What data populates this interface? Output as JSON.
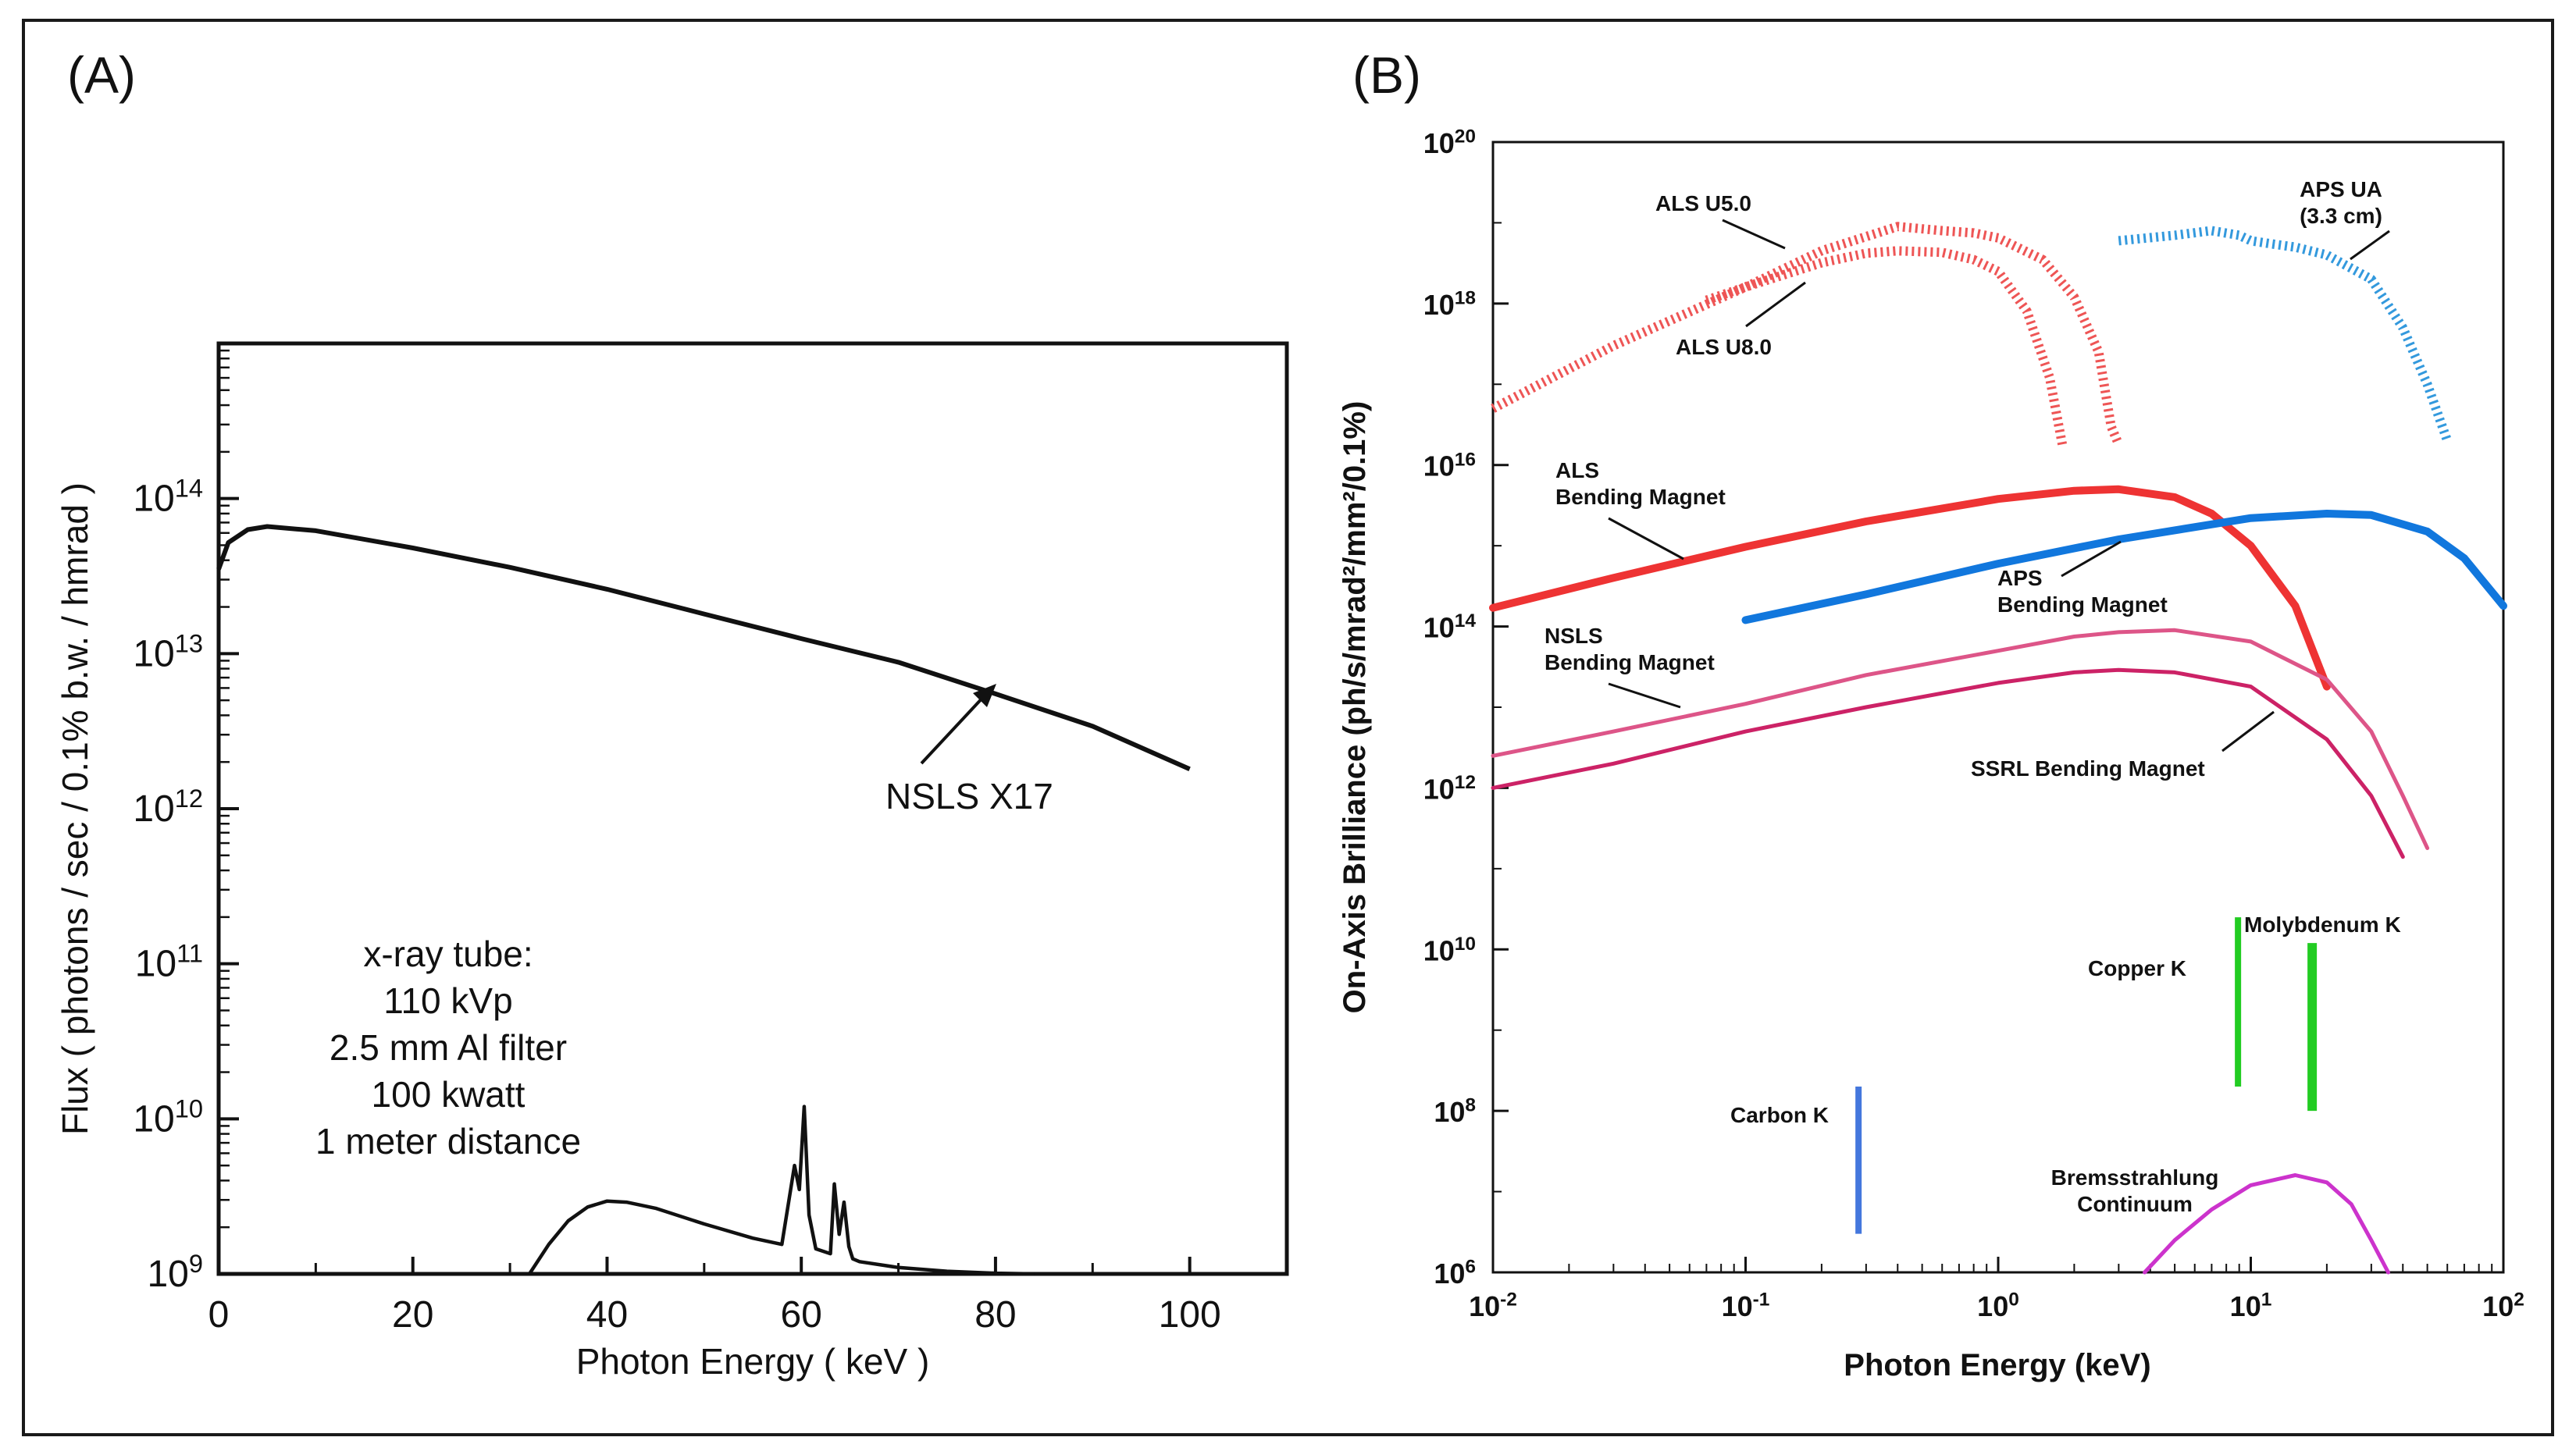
{
  "panels": {
    "a_label": "(A)",
    "b_label": "(B)"
  },
  "chart_data": [
    {
      "type": "line",
      "panel": "(A)",
      "title": "",
      "xlabel": "Photon Energy ( keV )",
      "ylabel": "Flux ( photons / sec / 0.1% b.w. / hmrad )",
      "x_ticks": [
        "0",
        "20",
        "40",
        "60",
        "80",
        "100"
      ],
      "y_ticks": [
        {
          "base": "10",
          "exp": "9"
        },
        {
          "base": "10",
          "exp": "10"
        },
        {
          "base": "10",
          "exp": "11"
        },
        {
          "base": "10",
          "exp": "12"
        },
        {
          "base": "10",
          "exp": "13"
        },
        {
          "base": "10",
          "exp": "14"
        }
      ],
      "xlim": [
        0,
        110
      ],
      "ylim": [
        1000000000.0,
        1000000000000000.0
      ],
      "y_scale": "log",
      "grid": false,
      "series": [
        {
          "name": "NSLS X17",
          "x": [
            0,
            1,
            3,
            5,
            10,
            20,
            30,
            40,
            50,
            60,
            70,
            80,
            90,
            100
          ],
          "y": [
            35000000000000.0,
            52000000000000.0,
            63000000000000.0,
            66000000000000.0,
            62000000000000.0,
            48000000000000.0,
            36000000000000.0,
            26000000000000.0,
            18000000000000.0,
            12500000000000.0,
            8800000000000.0,
            5500000000000.0,
            3400000000000.0,
            1800000000000.0
          ]
        },
        {
          "name": "x-ray tube",
          "x": [
            32,
            34,
            36,
            38,
            40,
            42,
            45,
            50,
            55,
            58,
            59.3,
            59.8,
            60.3,
            60.8,
            61.5,
            63,
            63.4,
            63.9,
            64.4,
            64.9,
            65.3,
            66,
            70,
            75,
            80,
            84
          ],
          "y": [
            1000000000.0,
            1550000000.0,
            2200000000.0,
            2700000000.0,
            2950000000.0,
            2900000000.0,
            2650000000.0,
            2100000000.0,
            1700000000.0,
            1550000000.0,
            5000000000.0,
            3500000000.0,
            12000000000.0,
            2400000000.0,
            1450000000.0,
            1350000000.0,
            3800000000.0,
            1800000000.0,
            2900000000.0,
            1500000000.0,
            1250000000.0,
            1200000000.0,
            1100000000.0,
            1040000000.0,
            1010000000.0,
            1000000000.0
          ]
        }
      ],
      "annotations": {
        "series_label": "NSLS X17",
        "tube_lines": [
          "x-ray tube:",
          "110 kVp",
          "2.5 mm Al filter",
          "100 kwatt",
          "1 meter distance"
        ]
      }
    },
    {
      "type": "line",
      "panel": "(B)",
      "title": "",
      "xlabel": "Photon Energy (keV)",
      "ylabel": "On-Axis Brilliance (ph/s/mrad²/mm²/0.1%)",
      "x_scale": "log",
      "y_scale": "log",
      "xlim": [
        0.01,
        100
      ],
      "ylim": [
        1000000.0,
        1e+20
      ],
      "x_ticks": [
        {
          "base": "10",
          "exp": "-2"
        },
        {
          "base": "10",
          "exp": "-1"
        },
        {
          "base": "10",
          "exp": "0"
        },
        {
          "base": "10",
          "exp": "1"
        },
        {
          "base": "10",
          "exp": "2"
        }
      ],
      "y_ticks": [
        {
          "base": "10",
          "exp": "6"
        },
        {
          "base": "10",
          "exp": "8"
        },
        {
          "base": "10",
          "exp": "10"
        },
        {
          "base": "10",
          "exp": "12"
        },
        {
          "base": "10",
          "exp": "14"
        },
        {
          "base": "10",
          "exp": "16"
        },
        {
          "base": "10",
          "exp": "18"
        },
        {
          "base": "10",
          "exp": "20"
        }
      ],
      "grid": false,
      "colors": {
        "als": "#ee3333",
        "aps": "#1177dd",
        "nsls": "#dd5588",
        "ssrl": "#cc2266",
        "undulator_als": "#ee5555",
        "undulator_aps": "#3399dd",
        "edge_green": "#22cc22",
        "edge_blue": "#4477dd",
        "brems": "#cc33cc"
      },
      "series": [
        {
          "name": "ALS U5.0",
          "style": "dotted",
          "color": "#ee5555",
          "x": [
            0.01,
            0.03,
            0.1,
            0.2,
            0.4,
            0.6,
            0.8,
            1.0,
            1.5,
            2.0,
            2.5,
            2.8,
            3.0
          ],
          "y": [
            5e+16,
            3e+17,
            1.6e+18,
            4.5e+18,
            9e+18,
            8e+18,
            7.5e+18,
            6.5e+18,
            3.5e+18,
            1.2e+18,
            2.5e+17,
            3e+16,
            1.8e+16
          ]
        },
        {
          "name": "ALS U8.0",
          "style": "dotted",
          "color": "#ee5555",
          "x": [
            0.07,
            0.1,
            0.2,
            0.3,
            0.4,
            0.6,
            0.8,
            1.0,
            1.3,
            1.6,
            1.8
          ],
          "y": [
            1.1e+18,
            1.6e+18,
            3.2e+18,
            4.2e+18,
            4.5e+18,
            4.3e+18,
            3.5e+18,
            2.5e+18,
            8e+17,
            1.2e+17,
            1.7e+16
          ]
        },
        {
          "name": "APS UA (3.3 cm)",
          "style": "dotted",
          "color": "#3399dd",
          "x": [
            3,
            5,
            7,
            9,
            10,
            12,
            15,
            20,
            30,
            40,
            50,
            60
          ],
          "y": [
            6e+18,
            7e+18,
            8e+18,
            7e+18,
            6e+18,
            5.5e+18,
            5e+18,
            4e+18,
            2e+18,
            5e+17,
            1e+17,
            2e+16
          ]
        },
        {
          "name": "ALS Bending Magnet",
          "style": "solid",
          "color": "#ee3333",
          "x": [
            0.01,
            0.03,
            0.1,
            0.3,
            1,
            2,
            3,
            5,
            7,
            10,
            15,
            20
          ],
          "y": [
            170000000000000.0,
            400000000000000.0,
            970000000000000.0,
            2000000000000000.0,
            3800000000000000.0,
            4800000000000000.0,
            5000000000000000.0,
            4000000000000000.0,
            2500000000000000.0,
            1000000000000000.0,
            180000000000000.0,
            18000000000000.0
          ]
        },
        {
          "name": "APS Bending Magnet",
          "style": "solid",
          "color": "#1177dd",
          "x": [
            0.1,
            0.3,
            1,
            3,
            10,
            20,
            30,
            50,
            70,
            100
          ],
          "y": [
            120000000000000.0,
            250000000000000.0,
            600000000000000.0,
            1200000000000000.0,
            2200000000000000.0,
            2500000000000000.0,
            2400000000000000.0,
            1500000000000000.0,
            700000000000000.0,
            180000000000000.0
          ]
        },
        {
          "name": "NSLS Bending Magnet",
          "style": "solid",
          "color": "#dd5588",
          "x": [
            0.01,
            0.03,
            0.1,
            0.3,
            1,
            2,
            3,
            5,
            10,
            20,
            30,
            40,
            50
          ],
          "y": [
            2500000000000.0,
            5000000000000.0,
            11000000000000.0,
            25000000000000.0,
            50000000000000.0,
            75000000000000.0,
            85000000000000.0,
            90000000000000.0,
            65000000000000.0,
            22000000000000.0,
            5000000000000.0,
            800000000000.0,
            180000000000.0
          ]
        },
        {
          "name": "SSRL Bending Magnet",
          "style": "solid",
          "color": "#cc2266",
          "x": [
            0.01,
            0.03,
            0.1,
            0.3,
            1,
            2,
            3,
            5,
            10,
            20,
            30,
            40
          ],
          "y": [
            1000000000000.0,
            2000000000000.0,
            5000000000000.0,
            10000000000000.0,
            20000000000000.0,
            27000000000000.0,
            29000000000000.0,
            27000000000000.0,
            18000000000000.0,
            4000000000000.0,
            800000000000.0,
            140000000000.0
          ]
        },
        {
          "name": "Bremsstrahlung Continuum",
          "style": "solid",
          "color": "#cc33cc",
          "x": [
            3.8,
            5,
            7,
            10,
            15,
            20,
            25,
            30,
            35
          ],
          "y": [
            1000000.0,
            2500000.0,
            6000000.0,
            12000000.0,
            16000000.0,
            13000000.0,
            7000000.0,
            2500000.0,
            1000000.0
          ]
        }
      ],
      "edges": [
        {
          "name": "Carbon K",
          "x": 0.28,
          "y_bottom": 3000000.0,
          "y_top": 200000000.0,
          "color": "#4477dd"
        },
        {
          "name": "Copper K",
          "x": 8.9,
          "y_bottom": 200000000.0,
          "y_top": 25000000000.0,
          "color": "#22cc22"
        },
        {
          "name": "Molybdenum K",
          "x": 17.5,
          "y_bottom": 100000000.0,
          "y_top": 12000000000.0,
          "color": "#22cc22"
        }
      ],
      "labels": {
        "als_u50": "ALS U5.0",
        "als_u80": "ALS U8.0",
        "aps_ua_1": "APS UA",
        "aps_ua_2": "(3.3 cm)",
        "als_bm_1": "ALS",
        "als_bm_2": "Bending Magnet",
        "aps_bm_1": "APS",
        "aps_bm_2": "Bending Magnet",
        "nsls_bm_1": "NSLS",
        "nsls_bm_2": "Bending Magnet",
        "ssrl_bm": "SSRL Bending Magnet",
        "copper": "Copper K",
        "molybdenum": "Molybdenum K",
        "carbon": "Carbon K",
        "brems_1": "Bremsstrahlung",
        "brems_2": "Continuum"
      }
    }
  ]
}
